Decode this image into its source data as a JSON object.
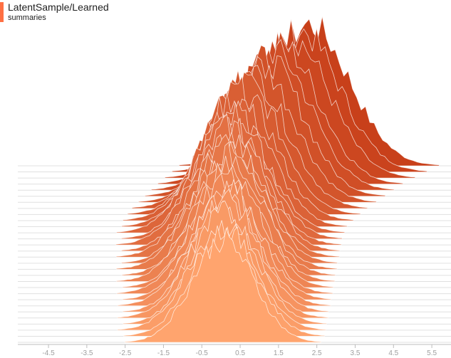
{
  "header": {
    "title": "LatentSample/Learned",
    "subtitle": "summaries"
  },
  "chart_data": {
    "type": "area",
    "subtype": "ridgeline-histogram",
    "x_tick_labels": [
      "-4.5",
      "-3.5",
      "-2.5",
      "-1.5",
      "-0.5",
      "0.5",
      "1.5",
      "2.5",
      "3.5",
      "4.5",
      "5.5"
    ],
    "xlim": [
      -5.3,
      6.0
    ],
    "distribution_count": 30,
    "colors": {
      "oldest": "#ffa46e",
      "newest": "#c8401a",
      "accent": "#ff7043",
      "axis": "#bdbdbd",
      "tick_text": "#9e9e9e"
    },
    "series": [
      {
        "center": 0.05,
        "spread": 0.8,
        "peak": 0.48
      },
      {
        "center": 0.08,
        "spread": 0.82,
        "peak": 0.5
      },
      {
        "center": 0.02,
        "spread": 0.85,
        "peak": 0.49
      },
      {
        "center": 0.1,
        "spread": 0.83,
        "peak": 0.52
      },
      {
        "center": 0.05,
        "spread": 0.86,
        "peak": 0.5
      },
      {
        "center": 0.12,
        "spread": 0.84,
        "peak": 0.53
      },
      {
        "center": 0.08,
        "spread": 0.87,
        "peak": 0.51
      },
      {
        "center": 0.15,
        "spread": 0.85,
        "peak": 0.54
      },
      {
        "center": 0.1,
        "spread": 0.88,
        "peak": 0.52
      },
      {
        "center": 0.18,
        "spread": 0.86,
        "peak": 0.55
      },
      {
        "center": 0.12,
        "spread": 0.89,
        "peak": 0.53
      },
      {
        "center": 0.2,
        "spread": 0.87,
        "peak": 0.56
      },
      {
        "center": 0.15,
        "spread": 0.9,
        "peak": 0.54
      },
      {
        "center": 0.22,
        "spread": 0.88,
        "peak": 0.57
      },
      {
        "center": 0.18,
        "spread": 0.91,
        "peak": 0.55
      },
      {
        "center": 0.25,
        "spread": 0.89,
        "peak": 0.58
      },
      {
        "center": 0.2,
        "spread": 0.92,
        "peak": 0.56
      },
      {
        "center": 0.28,
        "spread": 0.9,
        "peak": 0.59
      },
      {
        "center": 0.25,
        "spread": 0.93,
        "peak": 0.57
      },
      {
        "center": 0.35,
        "spread": 0.92,
        "peak": 0.6
      },
      {
        "center": 0.45,
        "spread": 0.94,
        "peak": 0.61
      },
      {
        "center": 0.6,
        "spread": 0.95,
        "peak": 0.62
      },
      {
        "center": 0.75,
        "spread": 0.96,
        "peak": 0.63
      },
      {
        "center": 0.95,
        "spread": 0.97,
        "peak": 0.64
      },
      {
        "center": 1.15,
        "spread": 0.98,
        "peak": 0.64
      },
      {
        "center": 1.35,
        "spread": 0.99,
        "peak": 0.65
      },
      {
        "center": 1.55,
        "spread": 1.0,
        "peak": 0.65
      },
      {
        "center": 1.8,
        "spread": 1.02,
        "peak": 0.66
      },
      {
        "center": 2.05,
        "spread": 1.04,
        "peak": 0.66
      },
      {
        "center": 2.3,
        "spread": 1.06,
        "peak": 0.66
      }
    ]
  }
}
